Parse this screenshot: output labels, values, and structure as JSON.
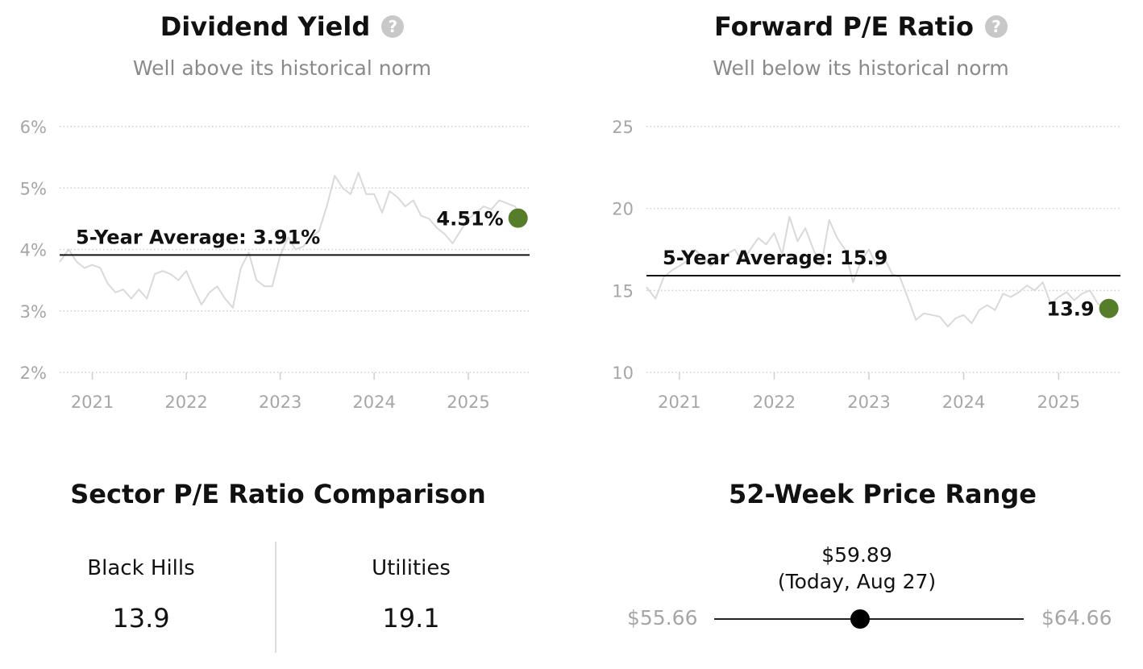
{
  "chart_data": [
    {
      "type": "line",
      "title": "Dividend Yield",
      "subtitle": "Well above its historical norm",
      "y_ticks": [
        "6%",
        "5%",
        "4%",
        "3%",
        "2%"
      ],
      "ylim": [
        2,
        6
      ],
      "x_ticks": [
        "2021",
        "2022",
        "2023",
        "2024",
        "2025"
      ],
      "xlim": [
        "2020-08-27",
        "2025-08-27"
      ],
      "grid": true,
      "average": {
        "label": "5-Year Average: 3.91%",
        "value": 3.91
      },
      "current": {
        "label": "4.51%",
        "value": 4.51,
        "color": "#567d2a"
      },
      "line_color": "#d9d9d9",
      "series": [
        {
          "x": [
            "2020-08-27",
            "2020-10-01",
            "2020-11-01",
            "2020-12-01",
            "2021-01-01",
            "2021-02-01",
            "2021-03-01",
            "2021-04-01",
            "2021-05-01",
            "2021-06-01",
            "2021-07-01",
            "2021-08-01",
            "2021-09-01",
            "2021-10-01",
            "2021-11-01",
            "2021-12-01",
            "2022-01-01",
            "2022-02-01",
            "2022-03-01",
            "2022-04-01",
            "2022-05-01",
            "2022-06-01",
            "2022-07-01",
            "2022-08-01",
            "2022-09-01",
            "2022-10-01",
            "2022-11-01",
            "2022-12-01",
            "2023-01-01",
            "2023-02-01",
            "2023-03-01",
            "2023-04-01",
            "2023-05-01",
            "2023-06-01",
            "2023-07-01",
            "2023-08-01",
            "2023-09-01",
            "2023-10-01",
            "2023-11-01",
            "2023-12-01",
            "2024-01-01",
            "2024-02-01",
            "2024-03-01",
            "2024-04-01",
            "2024-05-01",
            "2024-06-01",
            "2024-07-01",
            "2024-08-01",
            "2024-09-01",
            "2024-10-01",
            "2024-11-01",
            "2024-12-01",
            "2025-01-01",
            "2025-02-01",
            "2025-03-01",
            "2025-04-01",
            "2025-05-01",
            "2025-06-01",
            "2025-07-01",
            "2025-08-01"
          ],
          "y": [
            3.8,
            4.0,
            3.8,
            3.7,
            3.75,
            3.7,
            3.45,
            3.3,
            3.35,
            3.2,
            3.35,
            3.2,
            3.6,
            3.65,
            3.6,
            3.5,
            3.65,
            3.35,
            3.1,
            3.3,
            3.4,
            3.2,
            3.05,
            3.7,
            3.95,
            3.5,
            3.4,
            3.4,
            3.9,
            4.2,
            4.0,
            4.05,
            4.2,
            4.3,
            4.7,
            5.2,
            5.0,
            4.9,
            5.25,
            4.9,
            4.9,
            4.6,
            4.95,
            4.85,
            4.7,
            4.8,
            4.55,
            4.5,
            4.35,
            4.25,
            4.1,
            4.3,
            4.5,
            4.6,
            4.7,
            4.65,
            4.8,
            4.75,
            4.7,
            4.51
          ]
        }
      ]
    },
    {
      "type": "line",
      "title": "Forward P/E Ratio",
      "subtitle": "Well below its historical norm",
      "y_ticks": [
        "25",
        "20",
        "15",
        "10"
      ],
      "ylim": [
        10,
        25
      ],
      "x_ticks": [
        "2021",
        "2022",
        "2023",
        "2024",
        "2025"
      ],
      "xlim": [
        "2020-08-27",
        "2025-08-27"
      ],
      "grid": true,
      "average": {
        "label": "5-Year Average: 15.9",
        "value": 15.9
      },
      "current": {
        "label": "13.9",
        "value": 13.9,
        "color": "#567d2a"
      },
      "line_color": "#d9d9d9",
      "series": [
        {
          "x": [
            "2020-08-27",
            "2020-10-01",
            "2020-11-01",
            "2020-12-01",
            "2021-01-01",
            "2021-02-01",
            "2021-03-01",
            "2021-04-01",
            "2021-05-01",
            "2021-06-01",
            "2021-07-01",
            "2021-08-01",
            "2021-09-01",
            "2021-10-01",
            "2021-11-01",
            "2021-12-01",
            "2022-01-01",
            "2022-02-01",
            "2022-03-01",
            "2022-04-01",
            "2022-05-01",
            "2022-06-01",
            "2022-07-01",
            "2022-08-01",
            "2022-09-01",
            "2022-10-01",
            "2022-11-01",
            "2022-12-01",
            "2023-01-01",
            "2023-02-01",
            "2023-03-01",
            "2023-04-01",
            "2023-05-01",
            "2023-06-01",
            "2023-07-01",
            "2023-08-01",
            "2023-09-01",
            "2023-10-01",
            "2023-11-01",
            "2023-12-01",
            "2024-01-01",
            "2024-02-01",
            "2024-03-01",
            "2024-04-01",
            "2024-05-01",
            "2024-06-01",
            "2024-07-01",
            "2024-08-01",
            "2024-09-01",
            "2024-10-01",
            "2024-11-01",
            "2024-12-01",
            "2025-01-01",
            "2025-02-01",
            "2025-03-01",
            "2025-04-01",
            "2025-05-01",
            "2025-06-01",
            "2025-07-01",
            "2025-08-01"
          ],
          "y": [
            15.2,
            14.5,
            15.8,
            16.2,
            16.5,
            16.8,
            17.5,
            17.0,
            16.5,
            16.8,
            17.2,
            17.5,
            16.8,
            17.5,
            18.2,
            17.8,
            18.5,
            17.2,
            19.5,
            18.0,
            18.8,
            17.5,
            16.5,
            19.3,
            18.2,
            17.5,
            15.5,
            16.8,
            17.5,
            16.5,
            17.0,
            16.0,
            15.8,
            14.5,
            13.2,
            13.6,
            13.5,
            13.4,
            12.8,
            13.3,
            13.5,
            13.0,
            13.8,
            14.1,
            13.8,
            14.8,
            14.6,
            14.9,
            15.3,
            15.0,
            15.5,
            14.2,
            14.6,
            14.9,
            14.4,
            14.8,
            15.0,
            14.2,
            13.9,
            13.9
          ]
        }
      ]
    }
  ],
  "sector": {
    "title": "Sector P/E Ratio Comparison",
    "items": [
      {
        "name": "Black Hills",
        "value": "13.9"
      },
      {
        "name": "Utilities",
        "value": "19.1"
      }
    ]
  },
  "price_range": {
    "title": "52-Week Price Range",
    "current_price": "$59.89",
    "current_date": "(Today, Aug 27)",
    "low": "$55.66",
    "high": "$64.66",
    "low_value": 55.66,
    "high_value": 64.66,
    "current_value": 59.89
  },
  "help_icon": "question-icon"
}
